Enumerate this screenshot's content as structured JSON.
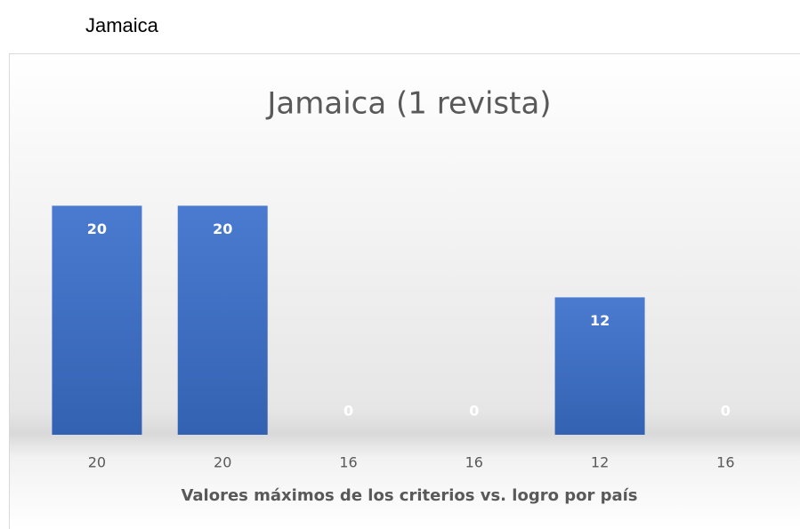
{
  "heading": "Jamaica",
  "chart_data": {
    "type": "bar",
    "title": "Jamaica (1 revista)",
    "x_label": "Valores máximos de los criterios vs. logro por país",
    "categories": [
      "20",
      "20",
      "16",
      "16",
      "12",
      "16"
    ],
    "values": [
      20,
      20,
      0,
      0,
      12,
      0
    ],
    "color": "#4472c4",
    "ylim": [
      0,
      25
    ]
  }
}
